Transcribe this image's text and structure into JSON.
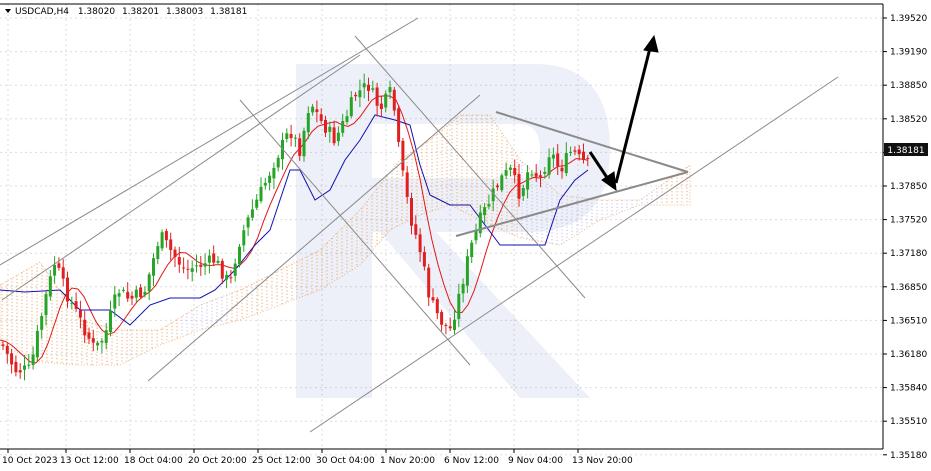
{
  "header": {
    "symbol": "USDCAD,H4",
    "open": "1.38020",
    "high": "1.38201",
    "low": "1.38003",
    "close": "1.38181"
  },
  "colors": {
    "bull": "#27a327",
    "bear": "#e02020",
    "tenkan": "#e01818",
    "kijun": "#1010b0",
    "cloud_bull": "#f09a52",
    "cloud_bear": "#b9b2dd",
    "trendline": "#8a8a8a",
    "arrow": "#000000",
    "price_tag_bg": "#111111",
    "grid": "#dcdcdc",
    "watermark": "#3a56b0"
  },
  "chart_data": {
    "type": "candlestick",
    "y_axis_ticks": [
      "1.39520",
      "1.39190",
      "1.38850",
      "1.38520",
      "1.38181",
      "1.37850",
      "1.37520",
      "1.37180",
      "1.36850",
      "1.36510",
      "1.36180",
      "1.35840",
      "1.35510",
      "1.35180"
    ],
    "x_axis_ticks": [
      "10 Oct 2023",
      "13 Oct 12:00",
      "18 Oct 04:00",
      "20 Oct 20:00",
      "25 Oct 12:00",
      "30 Oct 04:00",
      "1 Nov 20:00",
      "6 Nov 12:00",
      "9 Nov 04:00",
      "13 Nov 20:00"
    ],
    "ylim": [
      1.3508,
      1.3963
    ],
    "current_price": "1.38181",
    "grid": true
  }
}
